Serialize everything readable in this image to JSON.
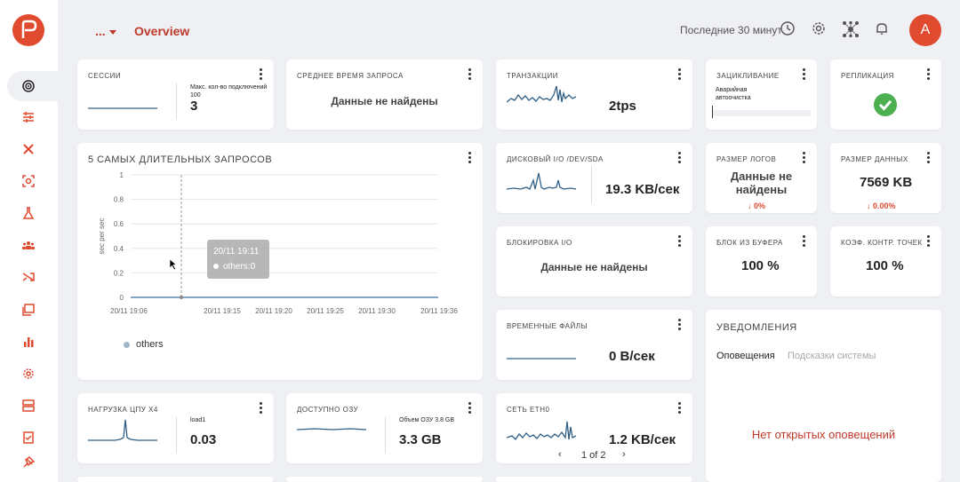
{
  "app": {
    "page_title": "Overview",
    "breadcrumb_more": "...",
    "time_range": "Последние 30 минут",
    "avatar_letter": "A"
  },
  "sidebar": {
    "items": [
      "dashboard",
      "sliders",
      "tools",
      "focus",
      "science",
      "users",
      "shuffle",
      "folders",
      "bar-chart",
      "settings",
      "database",
      "checklist",
      "pin"
    ]
  },
  "cards": {
    "sessions": {
      "title": "сессии",
      "max_label": "Макс. кол-во подключений 100",
      "value": "3"
    },
    "avg_query": {
      "title": "среднее время запроса",
      "nodata": "Данные не найдены"
    },
    "transactions": {
      "title": "транзакции",
      "value": "2tps"
    },
    "wraparound": {
      "title": "зацикливание",
      "label": "Аварийная автоочистка"
    },
    "replication": {
      "title": "репликация"
    },
    "top5": {
      "title": "5 самых длительных запросов",
      "ylabel": "sec per sec",
      "tooltip_time": "20/11 19:11",
      "tooltip_series": "others:0",
      "legend": "others"
    },
    "disk_io": {
      "title": "Дисковый I/O /dev/sda",
      "value": "19.3 KB/сек"
    },
    "log_size": {
      "title": "размер логов",
      "nodata_line1": "Данные не",
      "nodata_line2": "найдены",
      "delta": "↓ 0%"
    },
    "data_size": {
      "title": "размер данных",
      "value": "7569 KB",
      "delta": "↓ 0.00%"
    },
    "locks": {
      "title": "блокировка I/O",
      "nodata": "Данные не найдены"
    },
    "blks_hit": {
      "title": "блок из буфера",
      "value": "100 %"
    },
    "checkpoints": {
      "title": "коэф. контр. точек",
      "value": "100 %"
    },
    "temp_files": {
      "title": "временные файлы",
      "value": "0 B/сек"
    },
    "notifications": {
      "title": "Уведомления",
      "tab1": "Оповещения",
      "tab2": "Подсказки системы",
      "empty": "Нет открытых оповещений"
    },
    "cpu": {
      "title": "нагрузка ЦПУ x4",
      "sub": "load1",
      "value": "0.03"
    },
    "ram": {
      "title": "доступно ОЗУ",
      "sub": "Объем ОЗУ 3.8 GB",
      "value": "3.3 GB"
    },
    "net": {
      "title": "сеть eth0",
      "value": "1.2 KB/сек",
      "pager": "1 of 2"
    }
  },
  "chart_data": {
    "type": "line",
    "title": "5 самых длительных запросов",
    "ylabel": "sec per sec",
    "y_ticks": [
      "0",
      "0.2",
      "0.4",
      "0.6",
      "0.8",
      "1"
    ],
    "x_ticks": [
      "20/11 19:06",
      "20/11 19:15",
      "20/11 19:20",
      "20/11 19:25",
      "20/11 19:30",
      "20/11 19:36"
    ],
    "ylim": [
      0,
      1
    ],
    "series": [
      {
        "name": "others",
        "values": [
          0,
          0,
          0,
          0,
          0,
          0
        ]
      }
    ],
    "legend": "bottom-left",
    "colors": {
      "series": "#8aa4b8",
      "accent": "#c0392b",
      "ok": "#4caf50"
    }
  }
}
